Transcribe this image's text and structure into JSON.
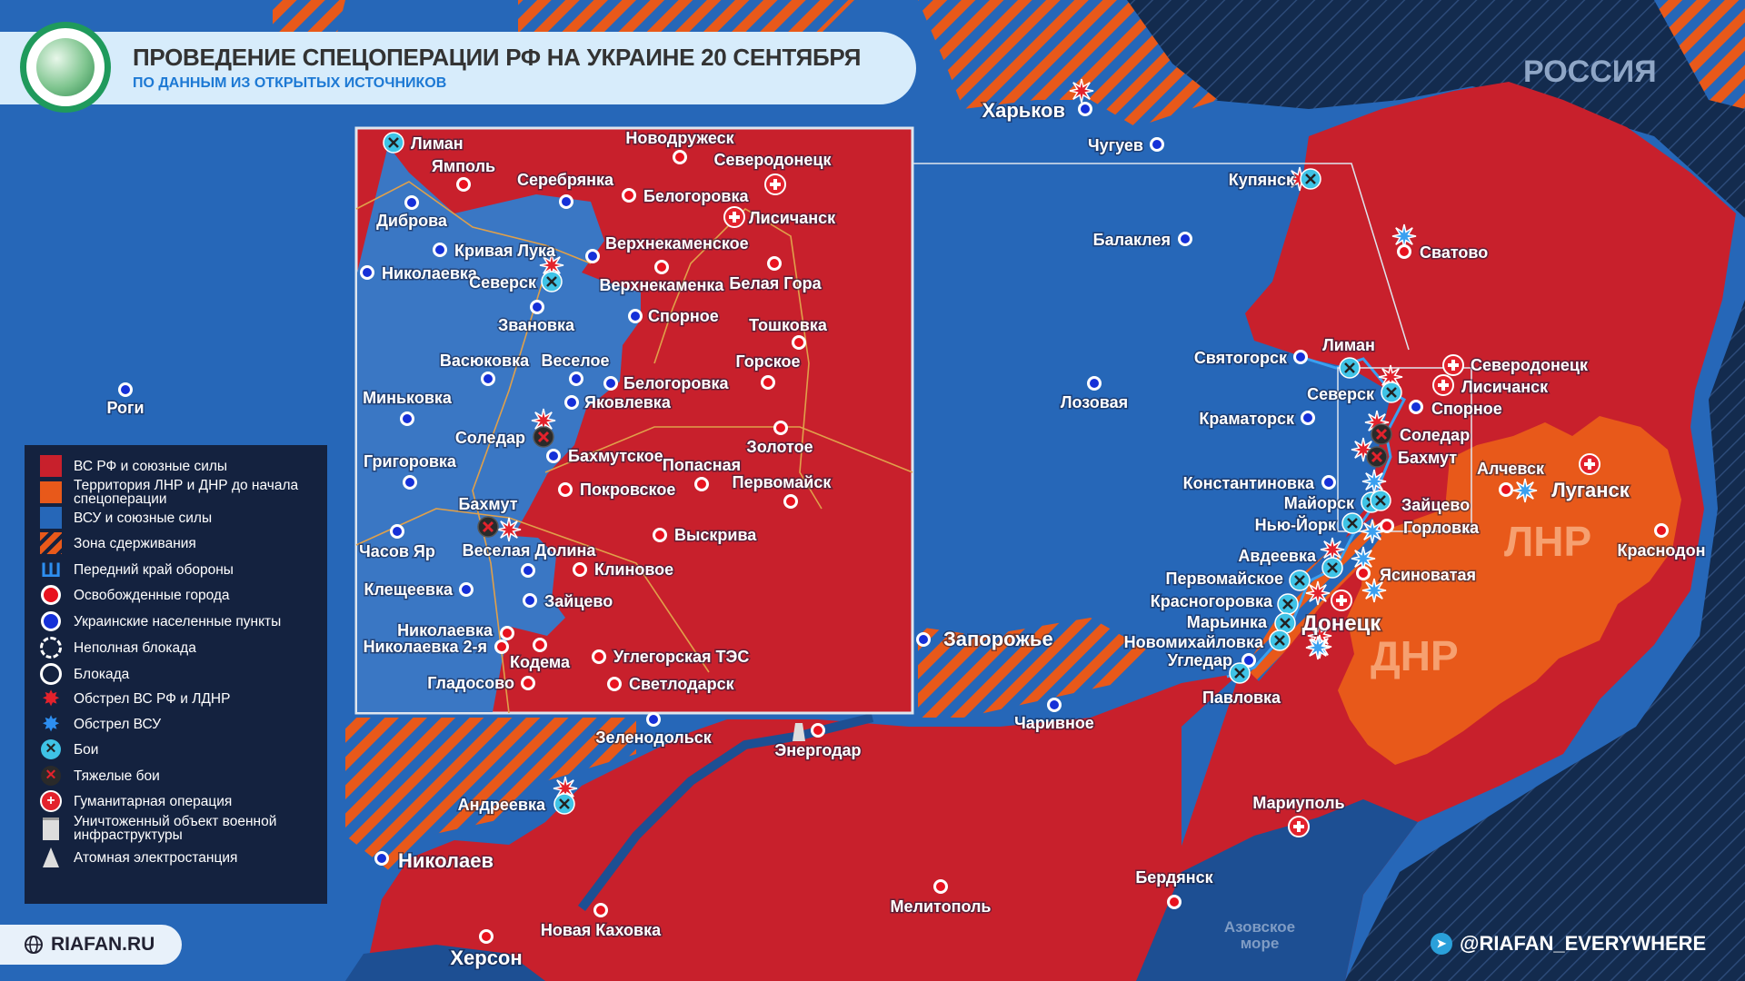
{
  "header": {
    "title": "ПРОВЕДЕНИЕ СПЕЦОПЕРАЦИИ РФ НА УКРАИНЕ 20 СЕНТЯБРЯ",
    "subtitle": "ПО ДАННЫМ ИЗ ОТКРЫТЫХ ИСТОЧНИКОВ"
  },
  "colors": {
    "russian_forces": "#c8202c",
    "lnr_dnr": "#e8591a",
    "ukrainian_forces": "#2667b8",
    "russia": "#132b4e",
    "ru_city": "#e8121e",
    "ua_city": "#1530d8",
    "battle": "#3fc3e6"
  },
  "regions": {
    "russia": "РОССИЯ",
    "lnr": "ЛНР",
    "dnr": "ДНР",
    "sea": "Азовское море"
  },
  "legend": [
    {
      "icon": "red-square",
      "label": "ВС РФ и союзные силы"
    },
    {
      "icon": "orange-square",
      "label": "Территория ЛНР и ДНР до начала спецоперации"
    },
    {
      "icon": "blue-square",
      "label": "ВСУ и союзные силы"
    },
    {
      "icon": "hatched-square",
      "label": "Зона сдерживания"
    },
    {
      "icon": "front-line",
      "label": "Передний край обороны"
    },
    {
      "icon": "red-dot",
      "label": "Освобожденные города"
    },
    {
      "icon": "blue-dot",
      "label": "Украинские населенные пункты"
    },
    {
      "icon": "dashed-circle",
      "label": "Неполная блокада"
    },
    {
      "icon": "circle",
      "label": "Блокада"
    },
    {
      "icon": "red-explosion",
      "label": "Обстрел ВС РФ и ЛДНР"
    },
    {
      "icon": "blue-explosion",
      "label": "Обстрел ВСУ"
    },
    {
      "icon": "battle",
      "label": "Бои"
    },
    {
      "icon": "heavy-battle",
      "label": "Тяжелые бои"
    },
    {
      "icon": "humanitarian",
      "label": "Гуманитарная операция"
    },
    {
      "icon": "destroyed-building",
      "label": "Уничтоженный объект военной инфраструктуры"
    },
    {
      "icon": "nuclear-plant",
      "label": "Атомная электростанция"
    }
  ],
  "places": [
    {
      "name": "Харьков",
      "type": "ua"
    },
    {
      "name": "Чугуев",
      "type": "ua"
    },
    {
      "name": "Купянск",
      "type": "battle"
    },
    {
      "name": "Балаклея",
      "type": "ua"
    },
    {
      "name": "Сватово",
      "type": "ru"
    },
    {
      "name": "Святогорск",
      "type": "ua"
    },
    {
      "name": "Лиман",
      "type": "battle"
    },
    {
      "name": "Северодонецк",
      "type": "hum"
    },
    {
      "name": "Лисичанск",
      "type": "hum"
    },
    {
      "name": "Северск",
      "type": "battle"
    },
    {
      "name": "Спорное",
      "type": "ua"
    },
    {
      "name": "Краматорск",
      "type": "ua"
    },
    {
      "name": "Лозовая",
      "type": "ua"
    },
    {
      "name": "Соледар",
      "type": "heavy"
    },
    {
      "name": "Бахмут",
      "type": "heavy"
    },
    {
      "name": "Константиновка",
      "type": "ua"
    },
    {
      "name": "Майорск",
      "type": "battle"
    },
    {
      "name": "Зайцево",
      "type": "battle"
    },
    {
      "name": "Нью-Йорк",
      "type": "battle"
    },
    {
      "name": "Горловка",
      "type": "ru"
    },
    {
      "name": "Алчевск",
      "type": "ru"
    },
    {
      "name": "Луганск",
      "type": "hum"
    },
    {
      "name": "Краснодон",
      "type": "ru"
    },
    {
      "name": "Авдеевка",
      "type": "battle"
    },
    {
      "name": "Ясиноватая",
      "type": "ru"
    },
    {
      "name": "Первомайское",
      "type": "battle"
    },
    {
      "name": "Красногоровка",
      "type": "battle"
    },
    {
      "name": "Донецк",
      "type": "hum"
    },
    {
      "name": "Марьинка",
      "type": "battle"
    },
    {
      "name": "Новомихайловка",
      "type": "battle"
    },
    {
      "name": "Угледар",
      "type": "ua"
    },
    {
      "name": "Павловка",
      "type": "battle"
    },
    {
      "name": "Запорожье",
      "type": "ua"
    },
    {
      "name": "Чаривное",
      "type": "ua"
    },
    {
      "name": "Энергодар",
      "type": "ru"
    },
    {
      "name": "Зеленодольск",
      "type": "ua"
    },
    {
      "name": "Андреевка",
      "type": "battle"
    },
    {
      "name": "Николаев",
      "type": "ua"
    },
    {
      "name": "Новая Каховка",
      "type": "ru"
    },
    {
      "name": "Херсон",
      "type": "ru"
    },
    {
      "name": "Мелитополь",
      "type": "ru"
    },
    {
      "name": "Бердянск",
      "type": "ru"
    },
    {
      "name": "Мариуполь",
      "type": "hum"
    },
    {
      "name": "Роги",
      "type": "ua"
    }
  ],
  "inset_places": [
    {
      "name": "Лиман",
      "type": "battle"
    },
    {
      "name": "Ямполь",
      "type": "ru"
    },
    {
      "name": "Новодружеск",
      "type": "ru"
    },
    {
      "name": "Северодонецк",
      "type": "hum"
    },
    {
      "name": "Серебрянка",
      "type": "ua"
    },
    {
      "name": "Белогоровка",
      "type": "ru"
    },
    {
      "name": "Лисичанск",
      "type": "hum"
    },
    {
      "name": "Диброва",
      "type": "ua"
    },
    {
      "name": "Кривая Лука",
      "type": "ua"
    },
    {
      "name": "Николаевка",
      "type": "ua"
    },
    {
      "name": "Верхнекаменское",
      "type": "ua"
    },
    {
      "name": "Северск",
      "type": "battle"
    },
    {
      "name": "Верхнекаменка",
      "type": "ru"
    },
    {
      "name": "Белая Гора",
      "type": "ru"
    },
    {
      "name": "Звановка",
      "type": "ua"
    },
    {
      "name": "Спорное",
      "type": "ua"
    },
    {
      "name": "Тошковка",
      "type": "ru"
    },
    {
      "name": "Васюковка",
      "type": "ua"
    },
    {
      "name": "Веселое",
      "type": "ua"
    },
    {
      "name": "Белогоровка",
      "type": "ua"
    },
    {
      "name": "Горское",
      "type": "ru"
    },
    {
      "name": "Миньковка",
      "type": "ua"
    },
    {
      "name": "Яковлевка",
      "type": "ua"
    },
    {
      "name": "Соледар",
      "type": "heavy"
    },
    {
      "name": "Золотое",
      "type": "ru"
    },
    {
      "name": "Бахмутское",
      "type": "ua"
    },
    {
      "name": "Григоровка",
      "type": "ua"
    },
    {
      "name": "Попасная",
      "type": "ru"
    },
    {
      "name": "Покровское",
      "type": "ru"
    },
    {
      "name": "Первомайск",
      "type": "ru"
    },
    {
      "name": "Бахмут",
      "type": "heavy"
    },
    {
      "name": "Часов Яр",
      "type": "ua"
    },
    {
      "name": "Выскрива",
      "type": "ru"
    },
    {
      "name": "Веселая Долина",
      "type": "ua"
    },
    {
      "name": "Клиновое",
      "type": "ru"
    },
    {
      "name": "Клещеевка",
      "type": "ua"
    },
    {
      "name": "Зайцево",
      "type": "ua"
    },
    {
      "name": "Николаевка",
      "type": "ru"
    },
    {
      "name": "Николаевка 2-я",
      "type": "ru"
    },
    {
      "name": "Кодема",
      "type": "ru"
    },
    {
      "name": "Углегорская ТЭС",
      "type": "ru"
    },
    {
      "name": "Гладосово",
      "type": "ru"
    },
    {
      "name": "Светлодарск",
      "type": "ru"
    }
  ],
  "footer": {
    "site": "RIAFAN.RU",
    "telegram": "@RIAFAN_EVERYWHERE"
  }
}
